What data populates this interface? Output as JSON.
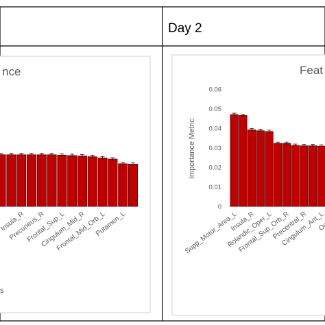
{
  "table": {
    "header_right": "Day 2"
  },
  "left_panel": {
    "title_fragment": "nce",
    "footer_fragment": "s"
  },
  "right_panel": {
    "title_fragment": "Feat"
  },
  "colors": {
    "bar": "#c00000",
    "bar_edge": "#5a0000",
    "axis_text": "#595959",
    "title_text": "#595959",
    "table_border": "#000000",
    "panel_border": "#d9d9d9"
  },
  "chart_data": [
    {
      "type": "bar",
      "title": "",
      "ylabel": "",
      "ylim": [
        0,
        0.06
      ],
      "categories": [
        "",
        "",
        "Insula_R",
        "",
        "Precuneus_R",
        "",
        "Frontal_Sup_L",
        "",
        "Cingulum_Mid_R",
        "",
        "Frontal_Mid_Orb_L",
        "",
        "Putamen_L",
        ""
      ],
      "values": [
        0.0264,
        0.0264,
        0.0264,
        0.0264,
        0.0264,
        0.0264,
        0.0262,
        0.026,
        0.0258,
        0.0254,
        0.0248,
        0.0242,
        0.0218,
        0.0216
      ],
      "error": 0.0007,
      "grid": false
    },
    {
      "type": "bar",
      "title": "",
      "ylabel": "Importance Metric",
      "ylim": [
        0,
        0.06
      ],
      "yticks": [
        "0.06",
        "0.05",
        "0.04",
        "0.03",
        "0.02",
        "0.01",
        "0"
      ],
      "categories": [
        "Supp_Motor_Area_L",
        "",
        "Insula_R",
        "",
        "Rolandic_Oper_L",
        "",
        "Frontal_Sup_Orb_R",
        "",
        "Precentral_R",
        "",
        "Cingulum_Ant_L",
        "",
        "Occipital"
      ],
      "values": [
        0.047,
        0.0465,
        0.0392,
        0.0387,
        0.0383,
        0.0322,
        0.0322,
        0.0312,
        0.031,
        0.031,
        0.0308,
        0.0306,
        0.0306
      ],
      "error": 0.0007,
      "grid": false
    }
  ]
}
